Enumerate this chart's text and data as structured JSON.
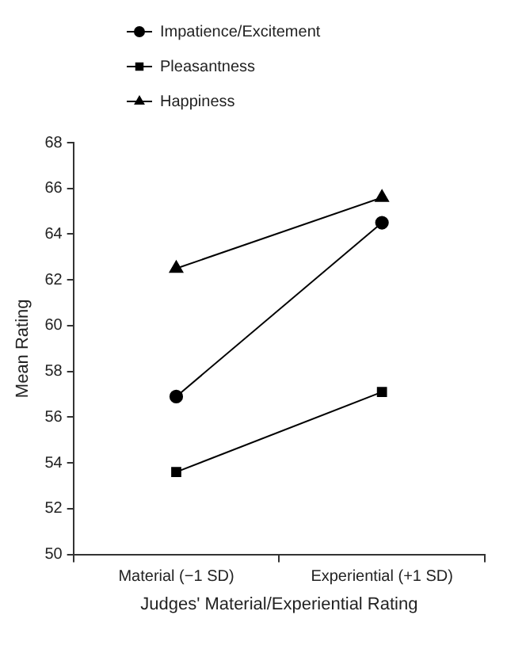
{
  "chart_data": {
    "type": "line",
    "xlabel": "Judges' Material/Experiential Rating",
    "ylabel": "Mean Rating",
    "categories": [
      "Material (−1 SD)",
      "Experiential (+1 SD)"
    ],
    "series": [
      {
        "name": "Impatience/Excitement",
        "color": "#000000",
        "marker": "circle",
        "values": [
          56.9,
          64.5
        ]
      },
      {
        "name": "Pleasantness",
        "color": "#000000",
        "marker": "square",
        "values": [
          53.6,
          57.1
        ]
      },
      {
        "name": "Happiness",
        "color": "#000000",
        "marker": "triangle",
        "values": [
          62.5,
          65.6
        ]
      }
    ],
    "ylim": [
      50,
      68
    ],
    "yticks": [
      50,
      52,
      54,
      56,
      58,
      60,
      62,
      64,
      66,
      68
    ],
    "grid": false,
    "legend": "top left",
    "line_style": "solid"
  }
}
